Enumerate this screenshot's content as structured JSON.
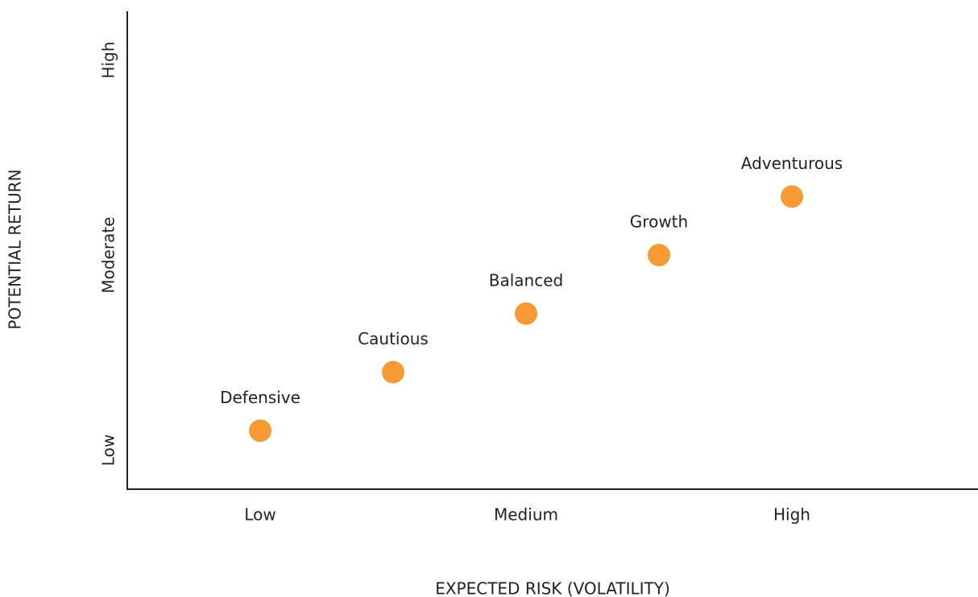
{
  "chart_data": {
    "type": "scatter",
    "x_label": "EXPECTED RISK (VOLATILITY)",
    "y_label": "POTENTIAL RETURN",
    "labels": [
      "Defensive",
      "Cautious",
      "Balanced",
      "Growth",
      "Adventurous"
    ],
    "x": [
      1,
      1.5,
      2,
      2.5,
      3
    ],
    "values": [
      1.1,
      1.4,
      1.7,
      2.0,
      2.3
    ],
    "color": "#f79a36",
    "xlim": [
      0.5,
      3.7
    ],
    "xticks": [
      {
        "value": 1,
        "label": "Low"
      },
      {
        "value": 2,
        "label": "Medium"
      },
      {
        "value": 3,
        "label": "High"
      }
    ],
    "ylim": [
      0.8,
      3.25
    ],
    "yticks": [
      {
        "value": 1,
        "label": "Low"
      },
      {
        "value": 2,
        "label": "Moderate"
      },
      {
        "value": 3,
        "label": "High"
      }
    ],
    "grid": false
  }
}
